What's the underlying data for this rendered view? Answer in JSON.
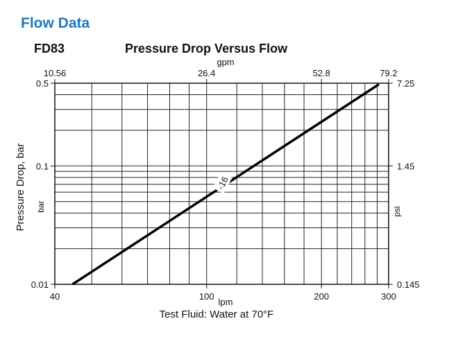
{
  "header": {
    "section_title": "Flow Data",
    "model": "FD83"
  },
  "chart_data": {
    "type": "line",
    "title": "Pressure Drop Versus Flow",
    "xlabel": "lpm",
    "x2label": "gpm",
    "ylabel": "Pressure Drop, bar",
    "ylabel_unit": "bar",
    "y2label": "psi",
    "footnote": "Test Fluid: Water at 70°F",
    "xscale": "log",
    "yscale": "log",
    "xlim": [
      40,
      300
    ],
    "ylim": [
      0.01,
      0.5
    ],
    "grid": true,
    "x_ticks": [
      {
        "value": 40,
        "label": "40"
      },
      {
        "value": 100,
        "label": "100"
      },
      {
        "value": 200,
        "label": "200"
      },
      {
        "value": 300,
        "label": "300"
      }
    ],
    "x2_ticks": [
      {
        "value": 40,
        "label": "10.56"
      },
      {
        "value": 100,
        "label": "26.4"
      },
      {
        "value": 200,
        "label": "52.8"
      },
      {
        "value": 300,
        "label": "79.2"
      }
    ],
    "y_ticks": [
      {
        "value": 0.5,
        "label": "0.5"
      },
      {
        "value": 0.1,
        "label": "0.1"
      },
      {
        "value": 0.01,
        "label": "0.01"
      }
    ],
    "y2_ticks": [
      {
        "value": 0.5,
        "label": "7.25"
      },
      {
        "value": 0.1,
        "label": "1.45"
      },
      {
        "value": 0.01,
        "label": "0.145"
      }
    ],
    "series": [
      {
        "name": "-16",
        "x": [
          44.5,
          283
        ],
        "y": [
          0.01,
          0.49
        ]
      }
    ],
    "annotations": [
      {
        "text": "-16",
        "x": 110,
        "y": 0.072,
        "rotation": -62
      }
    ]
  }
}
